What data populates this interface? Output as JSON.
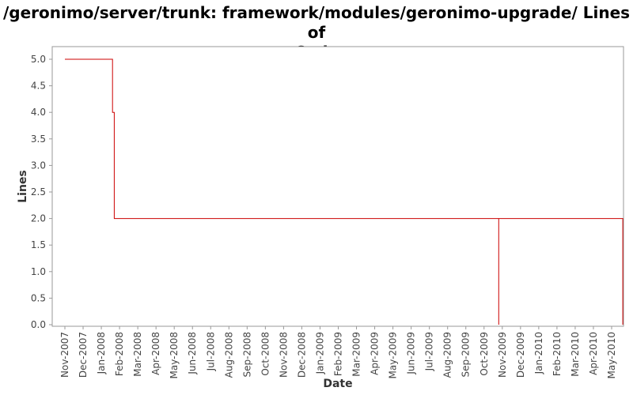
{
  "chart_data": {
    "type": "line",
    "title_lines": [
      "/geronimo/server/trunk: framework/modules/geronimo-upgrade/ Lines of",
      "Code"
    ],
    "xlabel": "Date",
    "ylabel": "Lines",
    "ylim": [
      0.0,
      5.0
    ],
    "yticks": [
      "0.0",
      "0.5",
      "1.0",
      "1.5",
      "2.0",
      "2.5",
      "3.0",
      "3.5",
      "4.0",
      "4.5",
      "5.0"
    ],
    "xticks": [
      "Nov-2007",
      "Dec-2007",
      "Jan-2008",
      "Feb-2008",
      "Mar-2008",
      "Apr-2008",
      "May-2008",
      "Jun-2008",
      "Jul-2008",
      "Aug-2008",
      "Sep-2008",
      "Oct-2008",
      "Nov-2008",
      "Dec-2008",
      "Jan-2009",
      "Feb-2009",
      "Mar-2009",
      "Apr-2009",
      "May-2009",
      "Jun-2009",
      "Jul-2009",
      "Aug-2009",
      "Sep-2009",
      "Oct-2009",
      "Nov-2009",
      "Dec-2009",
      "Jan-2010",
      "Feb-2010",
      "Mar-2010",
      "Apr-2010",
      "May-2010"
    ],
    "step": true,
    "grid": false,
    "series_color": "#cc0000",
    "series": [
      {
        "points": [
          {
            "x": "2007-11-01",
            "y": 5
          },
          {
            "x": "2008-01-20",
            "y": 5
          },
          {
            "x": "2008-01-20",
            "y": 4
          },
          {
            "x": "2008-01-23",
            "y": 4
          },
          {
            "x": "2008-01-23",
            "y": 2
          },
          {
            "x": "2009-10-26",
            "y": 2
          },
          {
            "x": "2009-10-26",
            "y": 0
          },
          {
            "x": "2009-10-26",
            "y": 2
          },
          {
            "x": "2010-05-20",
            "y": 2
          },
          {
            "x": "2010-05-20",
            "y": 0
          }
        ]
      }
    ]
  }
}
